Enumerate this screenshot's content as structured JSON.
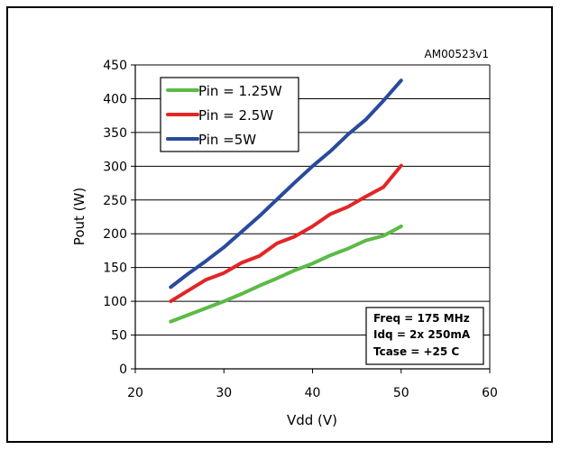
{
  "chart_data": {
    "type": "line",
    "id_label": "AM00523v1",
    "xlabel": "Vdd (V)",
    "ylabel": "Pout (W)",
    "xlim": [
      20,
      60
    ],
    "ylim": [
      0,
      450
    ],
    "xticks": [
      20,
      30,
      40,
      50,
      60
    ],
    "yticks": [
      0,
      50,
      100,
      150,
      200,
      250,
      300,
      350,
      400,
      450
    ],
    "grid": "horizontal",
    "legend_position": "top-left",
    "series": [
      {
        "name": "Pin = 1.25W",
        "color": "#5bbb46",
        "x": [
          24,
          26,
          28,
          30,
          32,
          34,
          36,
          38,
          40,
          42,
          44,
          46,
          48,
          50
        ],
        "y": [
          70,
          80,
          90,
          100,
          111,
          123,
          134,
          146,
          156,
          168,
          178,
          190,
          197,
          211
        ]
      },
      {
        "name": "Pin = 2.5W",
        "color": "#e32526",
        "x": [
          24,
          26,
          28,
          30,
          32,
          34,
          36,
          38,
          40,
          42,
          44,
          46,
          48,
          50
        ],
        "y": [
          100,
          116,
          132,
          142,
          157,
          167,
          186,
          196,
          211,
          229,
          240,
          255,
          269,
          301
        ]
      },
      {
        "name": "Pin =5W",
        "color": "#2a4a9c",
        "x": [
          24,
          26,
          28,
          30,
          32,
          34,
          36,
          38,
          40,
          42,
          44,
          46,
          48,
          50
        ],
        "y": [
          121,
          141,
          160,
          180,
          203,
          226,
          251,
          276,
          300,
          322,
          347,
          369,
          397,
          427
        ]
      }
    ],
    "annotation": [
      "Freq = 175 MHz",
      "Idq = 2x 250mA",
      "Tcase = +25  C"
    ]
  }
}
